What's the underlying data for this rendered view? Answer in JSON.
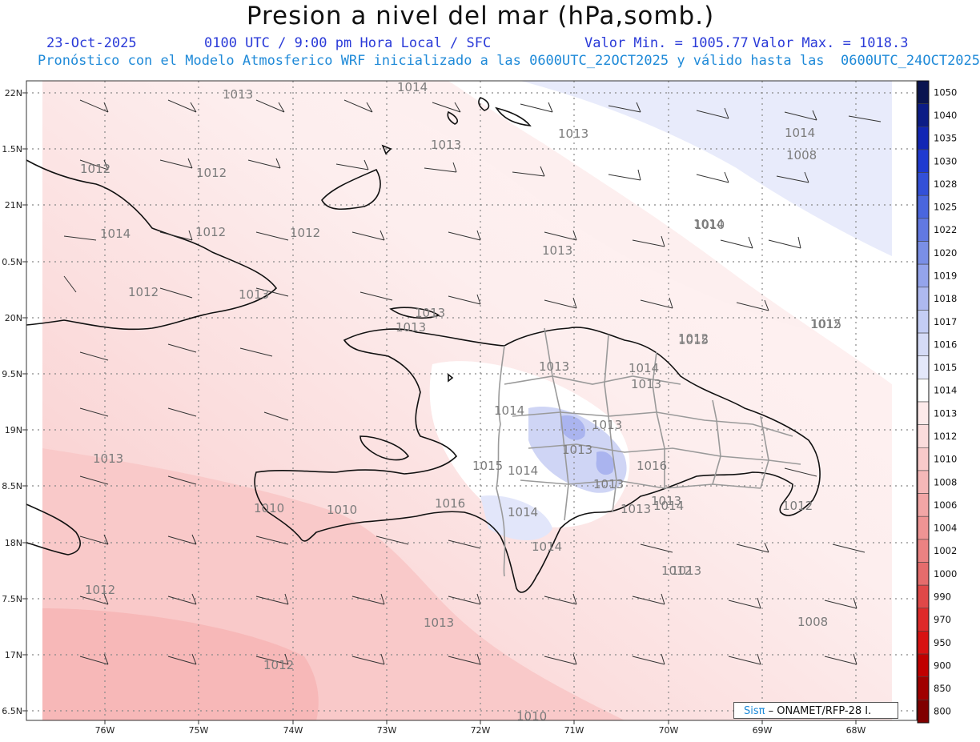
{
  "header": {
    "title": "Presion a nivel del mar (hPa,somb.)",
    "date": "23-Oct-2025",
    "time": "0100 UTC / 9:00 pm Hora Local / SFC",
    "min_value": "Valor Min. = 1005.77",
    "max_value": "Valor Max. = 1018.3",
    "description": "Pronóstico con el Modelo Atmosferico WRF inicializado a las 0600UTC_22OCT2025 y válido hasta las  0600UTC_24OCT2025"
  },
  "axes": {
    "lon_labels": [
      "76W",
      "75W",
      "74W",
      "73W",
      "72W",
      "71W",
      "70W",
      "69W",
      "68W"
    ],
    "lat_labels": [
      "22N",
      "1.5N",
      "21N",
      "0.5N",
      "20N",
      "9.5N",
      "19N",
      "8.5N",
      "18N",
      "7.5N",
      "17N",
      "6.5N"
    ]
  },
  "colorbar": {
    "levels": [
      "1050",
      "1040",
      "1035",
      "1030",
      "1028",
      "1025",
      "1022",
      "1020",
      "1019",
      "1018",
      "1017",
      "1016",
      "1015",
      "1014",
      "1013",
      "1012",
      "1010",
      "1008",
      "1006",
      "1004",
      "1002",
      "1000",
      "990",
      "970",
      "950",
      "900",
      "850",
      "800"
    ],
    "colors": [
      "#0a1450",
      "#0c1c86",
      "#1226b4",
      "#1f3ad0",
      "#3350d8",
      "#4a66de",
      "#6279e2",
      "#7a8fe6",
      "#94a4ec",
      "#aeb9f0",
      "#c4cdf4",
      "#d5dbf6",
      "#e4e8fa",
      "#ffffff",
      "#fdeaea",
      "#fbdcdc",
      "#f8caca",
      "#f5b8b8",
      "#f2a6a6",
      "#ef9494",
      "#eb8282",
      "#e56c6c",
      "#e04848",
      "#df2a2a",
      "#d81212",
      "#c00000",
      "#a00000",
      "#800000"
    ]
  },
  "contour_labels": [
    "1014",
    "1013",
    "1014",
    "1015",
    "1013",
    "1012",
    "1013",
    "1012",
    "1014",
    "1012",
    "1012",
    "1013",
    "1013",
    "1012",
    "1014",
    "1013",
    "1012",
    "1013",
    "1013",
    "1014",
    "1013",
    "1014",
    "1013",
    "1013",
    "1013",
    "1016",
    "1015",
    "1014",
    "1016",
    "1014",
    "1013",
    "1014",
    "1013",
    "1010",
    "1010",
    "1012",
    "1013",
    "1013",
    "1012",
    "1013",
    "1008",
    "1012",
    "1010",
    "1012",
    "1008",
    "1010",
    "1014",
    "1015",
    "1012"
  ],
  "credit": {
    "brand": "Sisπ",
    "text": " – ONAMET/RFP-28 I."
  }
}
